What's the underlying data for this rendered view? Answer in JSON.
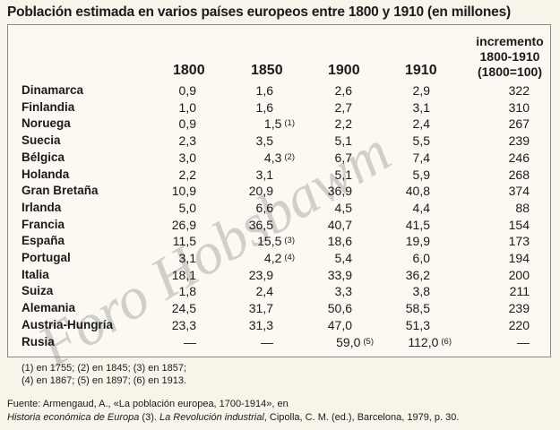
{
  "title": "Población estimada en varios países europeos entre 1800 y 1910 (en millones)",
  "headers": {
    "years": [
      "1800",
      "1850",
      "1900",
      "1910"
    ],
    "increment_line1": "incremento",
    "increment_line2": "1800-1910",
    "increment_line3": "(1800=100)"
  },
  "rows": [
    {
      "country": "Dinamarca",
      "v1800": "0,9",
      "v1850": "1,6",
      "v1900": "2,6",
      "v1910": "2,9",
      "inc": "322"
    },
    {
      "country": "Finlandia",
      "v1800": "1,0",
      "v1850": "1,6",
      "v1900": "2,7",
      "v1910": "3,1",
      "inc": "310"
    },
    {
      "country": "Noruega",
      "v1800": "0,9",
      "v1850": "1,5",
      "n1850": "(1)",
      "v1900": "2,2",
      "v1910": "2,4",
      "inc": "267"
    },
    {
      "country": "Suecia",
      "v1800": "2,3",
      "v1850": "3,5",
      "v1900": "5,1",
      "v1910": "5,5",
      "inc": "239"
    },
    {
      "country": "Bélgica",
      "v1800": "3,0",
      "v1850": "4,3",
      "n1850": "(2)",
      "v1900": "6,7",
      "v1910": "7,4",
      "inc": "246"
    },
    {
      "country": "Holanda",
      "v1800": "2,2",
      "v1850": "3,1",
      "v1900": "5,1",
      "v1910": "5,9",
      "inc": "268"
    },
    {
      "country": "Gran Bretaña",
      "v1800": "10,9",
      "v1850": "20,9",
      "v1900": "36,9",
      "v1910": "40,8",
      "inc": "374"
    },
    {
      "country": "Irlanda",
      "v1800": "5,0",
      "v1850": "6,6",
      "v1900": "4,5",
      "v1910": "4,4",
      "inc": "88"
    },
    {
      "country": "Francia",
      "v1800": "26,9",
      "v1850": "36,5",
      "v1900": "40,7",
      "v1910": "41,5",
      "inc": "154"
    },
    {
      "country": "España",
      "v1800": "11,5",
      "v1850": "15,5",
      "n1850": "(3)",
      "v1900": "18,6",
      "v1910": "19,9",
      "inc": "173"
    },
    {
      "country": "Portugal",
      "v1800": "3,1",
      "v1850": "4,2",
      "n1850": "(4)",
      "v1900": "5,4",
      "v1910": "6,0",
      "inc": "194"
    },
    {
      "country": "Italia",
      "v1800": "18,1",
      "v1850": "23,9",
      "v1900": "33,9",
      "v1910": "36,2",
      "inc": "200"
    },
    {
      "country": "Suiza",
      "v1800": "1,8",
      "v1850": "2,4",
      "v1900": "3,3",
      "v1910": "3,8",
      "inc": "211"
    },
    {
      "country": "Alemania",
      "v1800": "24,5",
      "v1850": "31,7",
      "v1900": "50,6",
      "v1910": "58,5",
      "inc": "239"
    },
    {
      "country": "Austria-Hungría",
      "v1800": "23,3",
      "v1850": "31,3",
      "v1900": "47,0",
      "v1910": "51,3",
      "inc": "220"
    },
    {
      "country": "Rusia",
      "v1800": "—",
      "v1850": "—",
      "v1900": "59,0",
      "n1900": "(5)",
      "v1910": "112,0",
      "n1910": "(6)",
      "inc": "—"
    }
  ],
  "notes": {
    "line1": "(1) en 1755; (2) en 1845; (3) en 1857;",
    "line2": "(4) en 1867; (5) en 1897; (6) en 1913."
  },
  "source": {
    "line1": "Fuente: Armengaud, A., «La población europea, 1700-1914», en",
    "line2_italic_a": "Historia económica de Europa",
    "line2_plain_a": " (3). ",
    "line2_italic_b": "La Revolución industrial",
    "line2_plain_b": ", Cipolla, C. M. (ed.), Barcelona, 1979, p. 30."
  },
  "watermark": "Foro Hobsbawm"
}
